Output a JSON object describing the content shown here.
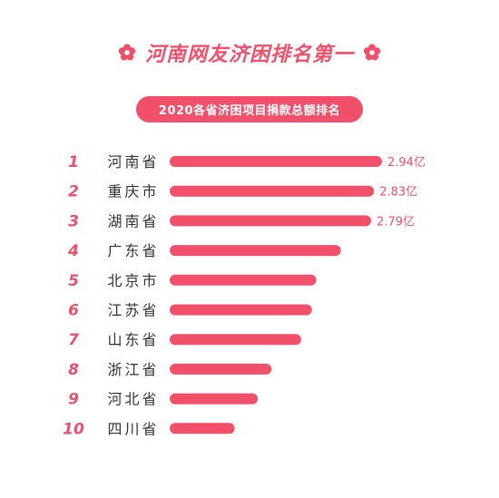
{
  "page": {
    "title": "河南网友济困排名第一",
    "subtitle": "2020各省济困项目捐款总额排名",
    "accent_color": "#f24f6a",
    "rank_color": "#e8506b",
    "label_color": "#333333",
    "value_color": "#f24f6a",
    "icons": [
      "flower-icon"
    ]
  },
  "chart_data": {
    "type": "bar",
    "orientation": "horizontal",
    "title": "河南网友济困排名第一",
    "subtitle": "2020各省济困项目捐款总额排名",
    "ranks": [
      "1",
      "2",
      "3",
      "4",
      "5",
      "6",
      "7",
      "8",
      "9",
      "10"
    ],
    "categories": [
      "河南省",
      "重庆市",
      "湖南省",
      "广东省",
      "北京市",
      "江苏省",
      "山东省",
      "浙江省",
      "河北省",
      "四川省"
    ],
    "values": [
      2.94,
      2.83,
      2.79,
      2.37,
      2.03,
      1.97,
      1.82,
      1.41,
      1.22,
      0.9
    ],
    "data_labels": [
      "2.94亿",
      "2.83亿",
      "2.79亿",
      "",
      "",
      "",
      "",
      "",
      "",
      ""
    ],
    "unit": "亿",
    "xlim": [
      0,
      2.94
    ],
    "grid": false,
    "legend": "none"
  }
}
